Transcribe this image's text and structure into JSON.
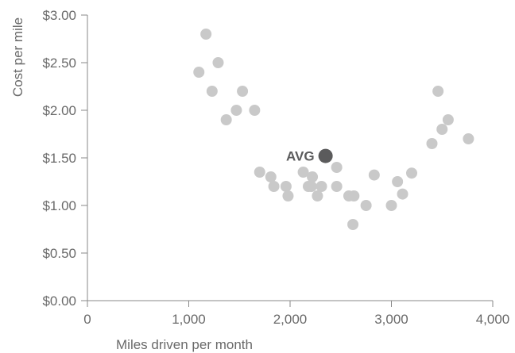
{
  "chart_data": {
    "type": "scatter",
    "title": "",
    "xlabel": "Miles driven per month",
    "ylabel": "Cost per mile",
    "xlim": [
      0,
      4000
    ],
    "ylim": [
      0,
      3.0
    ],
    "x_ticks": [
      "0",
      "1,000",
      "2,000",
      "3,000",
      "4,000"
    ],
    "y_ticks": [
      "$0.00",
      "$0.50",
      "$1.00",
      "$1.50",
      "$2.00",
      "$2.50",
      "$3.00"
    ],
    "grid": false,
    "colors": {
      "points": "#c9c9c9",
      "average": "#5b5b5c",
      "axis": "#8a8a8a",
      "text": "#6a6a6a"
    },
    "series": [
      {
        "values": [
          {
            "x": 1100,
            "y": 2.4
          },
          {
            "x": 1170,
            "y": 2.8
          },
          {
            "x": 1230,
            "y": 2.2
          },
          {
            "x": 1290,
            "y": 2.5
          },
          {
            "x": 1370,
            "y": 1.9
          },
          {
            "x": 1470,
            "y": 2.0
          },
          {
            "x": 1530,
            "y": 2.2
          },
          {
            "x": 1650,
            "y": 2.0
          },
          {
            "x": 1700,
            "y": 1.35
          },
          {
            "x": 1810,
            "y": 1.3
          },
          {
            "x": 1840,
            "y": 1.2
          },
          {
            "x": 1960,
            "y": 1.2
          },
          {
            "x": 1980,
            "y": 1.1
          },
          {
            "x": 2130,
            "y": 1.35
          },
          {
            "x": 2180,
            "y": 1.2
          },
          {
            "x": 2220,
            "y": 1.3
          },
          {
            "x": 2210,
            "y": 1.2
          },
          {
            "x": 2270,
            "y": 1.1
          },
          {
            "x": 2310,
            "y": 1.2
          },
          {
            "x": 2460,
            "y": 1.4
          },
          {
            "x": 2460,
            "y": 1.2
          },
          {
            "x": 2580,
            "y": 1.1
          },
          {
            "x": 2630,
            "y": 1.1
          },
          {
            "x": 2620,
            "y": 0.8
          },
          {
            "x": 2750,
            "y": 1.0
          },
          {
            "x": 2830,
            "y": 1.32
          },
          {
            "x": 3000,
            "y": 1.0
          },
          {
            "x": 3060,
            "y": 1.25
          },
          {
            "x": 3110,
            "y": 1.12
          },
          {
            "x": 3200,
            "y": 1.34
          },
          {
            "x": 3400,
            "y": 1.65
          },
          {
            "x": 3460,
            "y": 2.2
          },
          {
            "x": 3500,
            "y": 1.8
          },
          {
            "x": 3560,
            "y": 1.9
          },
          {
            "x": 3760,
            "y": 1.7
          }
        ]
      }
    ],
    "average": {
      "label": "AVG",
      "x": 2350,
      "y": 1.52
    }
  }
}
